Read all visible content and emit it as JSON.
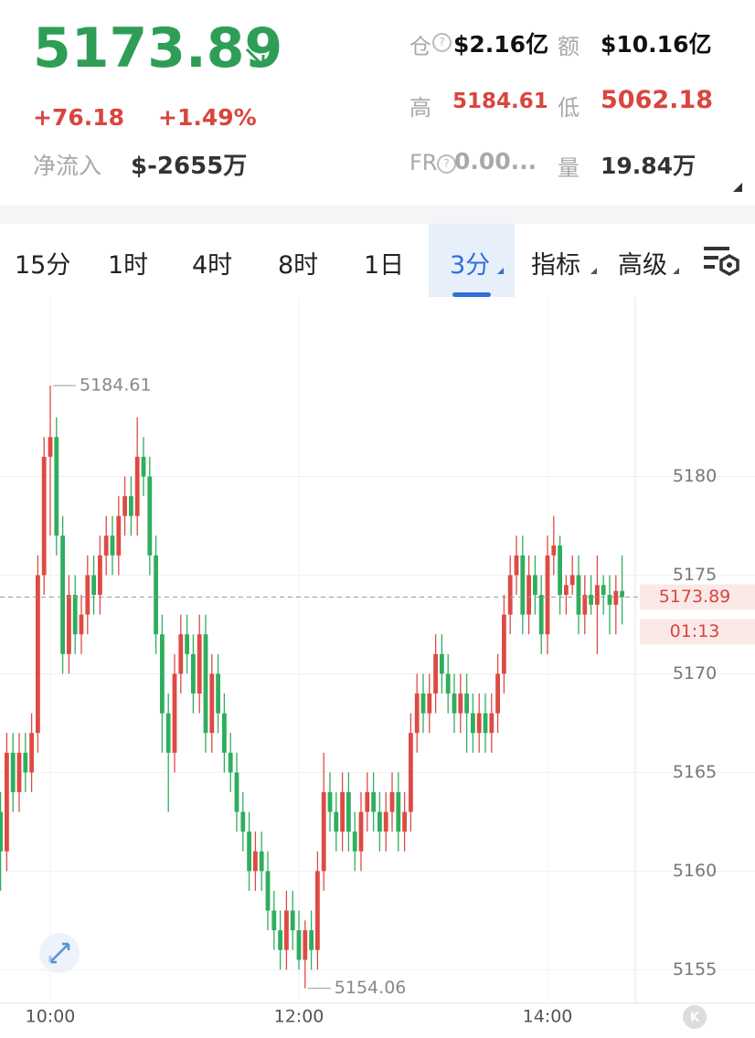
{
  "header": {
    "price": "5173.89",
    "change": "+76.18",
    "change_pct": "+1.49%",
    "net_inflow_label": "净流入",
    "net_inflow": "$-2655万",
    "stats": [
      {
        "label": "仓",
        "value": "$2.16亿"
      },
      {
        "label": "额",
        "value": "$10.16亿"
      },
      {
        "label": "高",
        "value": "5184.61"
      },
      {
        "label": "低",
        "value": "5062.18"
      },
      {
        "label": "FR",
        "value": "0.00..."
      },
      {
        "label": "量",
        "value": "19.84万"
      }
    ]
  },
  "tabs": [
    "15分",
    "1时",
    "4时",
    "8时",
    "1日",
    "3分",
    "指标",
    "高级"
  ],
  "chart_data": {
    "type": "candlestick",
    "up_color": "#de4a44",
    "down_color": "#2fae5e",
    "countdown": "01:13",
    "x": [
      "09:36",
      "09:39",
      "09:42",
      "09:45",
      "09:48",
      "09:51",
      "09:54",
      "09:57",
      "10:00",
      "10:03",
      "10:06",
      "10:09",
      "10:12",
      "10:15",
      "10:18",
      "10:21",
      "10:24",
      "10:27",
      "10:30",
      "10:33",
      "10:36",
      "10:39",
      "10:42",
      "10:45",
      "10:48",
      "10:51",
      "10:54",
      "10:57",
      "11:00",
      "11:03",
      "11:06",
      "11:09",
      "11:12",
      "11:15",
      "11:18",
      "11:21",
      "11:24",
      "11:27",
      "11:30",
      "11:33",
      "11:36",
      "11:39",
      "11:42",
      "11:45",
      "11:48",
      "11:51",
      "11:54",
      "11:57",
      "12:00",
      "12:03",
      "12:06",
      "12:09",
      "12:12",
      "12:15",
      "12:18",
      "12:21",
      "12:24",
      "12:27",
      "12:30",
      "12:33",
      "12:36",
      "12:39",
      "12:42",
      "12:45",
      "12:48",
      "12:51",
      "12:54",
      "12:57",
      "13:00",
      "13:03",
      "13:06",
      "13:09",
      "13:12",
      "13:15",
      "13:18",
      "13:21",
      "13:24",
      "13:27",
      "13:30",
      "13:33",
      "13:36",
      "13:39",
      "13:42",
      "13:45",
      "13:48",
      "13:51",
      "13:54",
      "13:57",
      "14:00",
      "14:03",
      "14:06",
      "14:09",
      "14:12",
      "14:15",
      "14:18",
      "14:21",
      "14:24",
      "14:27",
      "14:30",
      "14:33",
      "14:36"
    ],
    "ohlc": [
      [
        5163,
        5164,
        5159,
        5161
      ],
      [
        5161,
        5167,
        5160,
        5166
      ],
      [
        5166,
        5167,
        5163,
        5164
      ],
      [
        5164,
        5167,
        5163,
        5166
      ],
      [
        5166,
        5167,
        5164,
        5165
      ],
      [
        5165,
        5168,
        5164,
        5167
      ],
      [
        5167,
        5176,
        5166,
        5175
      ],
      [
        5175,
        5182,
        5174,
        5181
      ],
      [
        5181,
        5184.61,
        5177,
        5182
      ],
      [
        5182,
        5183,
        5176,
        5177
      ],
      [
        5177,
        5178,
        5170,
        5171
      ],
      [
        5171,
        5175,
        5170,
        5174
      ],
      [
        5174,
        5175,
        5171,
        5172
      ],
      [
        5172,
        5174,
        5171,
        5173
      ],
      [
        5173,
        5176,
        5172,
        5175
      ],
      [
        5175,
        5176,
        5173,
        5174
      ],
      [
        5174,
        5177,
        5173,
        5176
      ],
      [
        5176,
        5178,
        5175,
        5177
      ],
      [
        5177,
        5178,
        5175,
        5176
      ],
      [
        5176,
        5179,
        5175,
        5178
      ],
      [
        5178,
        5180,
        5177,
        5179
      ],
      [
        5179,
        5180,
        5177,
        5178
      ],
      [
        5178,
        5183,
        5177,
        5181
      ],
      [
        5181,
        5182,
        5179,
        5180
      ],
      [
        5180,
        5181,
        5175,
        5176
      ],
      [
        5176,
        5177,
        5171,
        5172
      ],
      [
        5172,
        5173,
        5166,
        5168
      ],
      [
        5168,
        5169,
        5163,
        5166
      ],
      [
        5166,
        5171,
        5165,
        5170
      ],
      [
        5170,
        5173,
        5169,
        5172
      ],
      [
        5172,
        5173,
        5170,
        5171
      ],
      [
        5171,
        5172,
        5168,
        5169
      ],
      [
        5169,
        5173,
        5168,
        5172
      ],
      [
        5172,
        5173,
        5166,
        5167
      ],
      [
        5167,
        5171,
        5166,
        5170
      ],
      [
        5170,
        5171,
        5167,
        5168
      ],
      [
        5168,
        5169,
        5165,
        5166
      ],
      [
        5166,
        5167,
        5164,
        5165
      ],
      [
        5165,
        5166,
        5162,
        5163
      ],
      [
        5163,
        5164,
        5161,
        5162
      ],
      [
        5162,
        5163,
        5159,
        5160
      ],
      [
        5160,
        5162,
        5159,
        5161
      ],
      [
        5161,
        5162,
        5159,
        5160
      ],
      [
        5160,
        5161,
        5157,
        5158
      ],
      [
        5158,
        5159,
        5156,
        5157
      ],
      [
        5157,
        5158,
        5155,
        5156
      ],
      [
        5156,
        5159,
        5155,
        5158
      ],
      [
        5158,
        5159,
        5156,
        5157
      ],
      [
        5157,
        5158,
        5155,
        5155.5
      ],
      [
        5155.5,
        5157.5,
        5154.06,
        5157
      ],
      [
        5157,
        5158,
        5155,
        5156
      ],
      [
        5156,
        5161,
        5155,
        5160
      ],
      [
        5160,
        5166,
        5159,
        5164
      ],
      [
        5164,
        5165,
        5162,
        5163
      ],
      [
        5163,
        5164,
        5161,
        5162
      ],
      [
        5162,
        5165,
        5161,
        5164
      ],
      [
        5164,
        5165,
        5161,
        5162
      ],
      [
        5162,
        5163,
        5160,
        5161
      ],
      [
        5161,
        5164,
        5160,
        5163
      ],
      [
        5163,
        5165,
        5162,
        5164
      ],
      [
        5164,
        5165,
        5162,
        5163
      ],
      [
        5163,
        5164,
        5161,
        5162
      ],
      [
        5162,
        5164,
        5161,
        5163
      ],
      [
        5163,
        5165,
        5162,
        5164
      ],
      [
        5164,
        5165,
        5161,
        5162
      ],
      [
        5162,
        5164,
        5161,
        5163
      ],
      [
        5163,
        5168,
        5162,
        5167
      ],
      [
        5167,
        5170,
        5166,
        5169
      ],
      [
        5169,
        5170,
        5167,
        5168
      ],
      [
        5168,
        5170,
        5167,
        5169
      ],
      [
        5169,
        5172,
        5168,
        5171
      ],
      [
        5171,
        5172,
        5169,
        5170
      ],
      [
        5170,
        5171,
        5168,
        5169
      ],
      [
        5169,
        5170,
        5167,
        5168
      ],
      [
        5168,
        5170,
        5167,
        5169
      ],
      [
        5169,
        5170,
        5166,
        5168
      ],
      [
        5168,
        5169,
        5166,
        5167
      ],
      [
        5167,
        5169,
        5166,
        5168
      ],
      [
        5168,
        5169,
        5166,
        5167
      ],
      [
        5167,
        5169,
        5166,
        5168
      ],
      [
        5168,
        5171,
        5167,
        5170
      ],
      [
        5170,
        5174,
        5169,
        5173
      ],
      [
        5173,
        5176,
        5172,
        5175
      ],
      [
        5175,
        5177,
        5174,
        5176
      ],
      [
        5176,
        5177,
        5172,
        5173
      ],
      [
        5173,
        5176,
        5172,
        5175
      ],
      [
        5175,
        5176,
        5173,
        5174
      ],
      [
        5174,
        5175,
        5171,
        5172
      ],
      [
        5172,
        5177,
        5171,
        5176
      ],
      [
        5176,
        5178,
        5175,
        5176.5
      ],
      [
        5176.5,
        5177,
        5173,
        5174
      ],
      [
        5174,
        5175,
        5173,
        5174.5
      ],
      [
        5174.5,
        5176,
        5174,
        5175
      ],
      [
        5175,
        5176,
        5172,
        5173
      ],
      [
        5173,
        5175,
        5172,
        5174
      ],
      [
        5174,
        5175,
        5173,
        5173.5
      ],
      [
        5173.5,
        5176,
        5171,
        5174.5
      ],
      [
        5174.5,
        5175,
        5173,
        5174
      ],
      [
        5174,
        5175,
        5172,
        5173.5
      ],
      [
        5173.5,
        5175,
        5172,
        5174.2
      ],
      [
        5174.2,
        5176,
        5172.5,
        5173.89
      ]
    ],
    "ylim": [
      5153.3,
      5189.1
    ],
    "yticks": [
      5155,
      5160,
      5165,
      5170,
      5175,
      5180
    ],
    "xticks": [
      "10:00",
      "12:00",
      "14:00"
    ],
    "grid": true
  }
}
